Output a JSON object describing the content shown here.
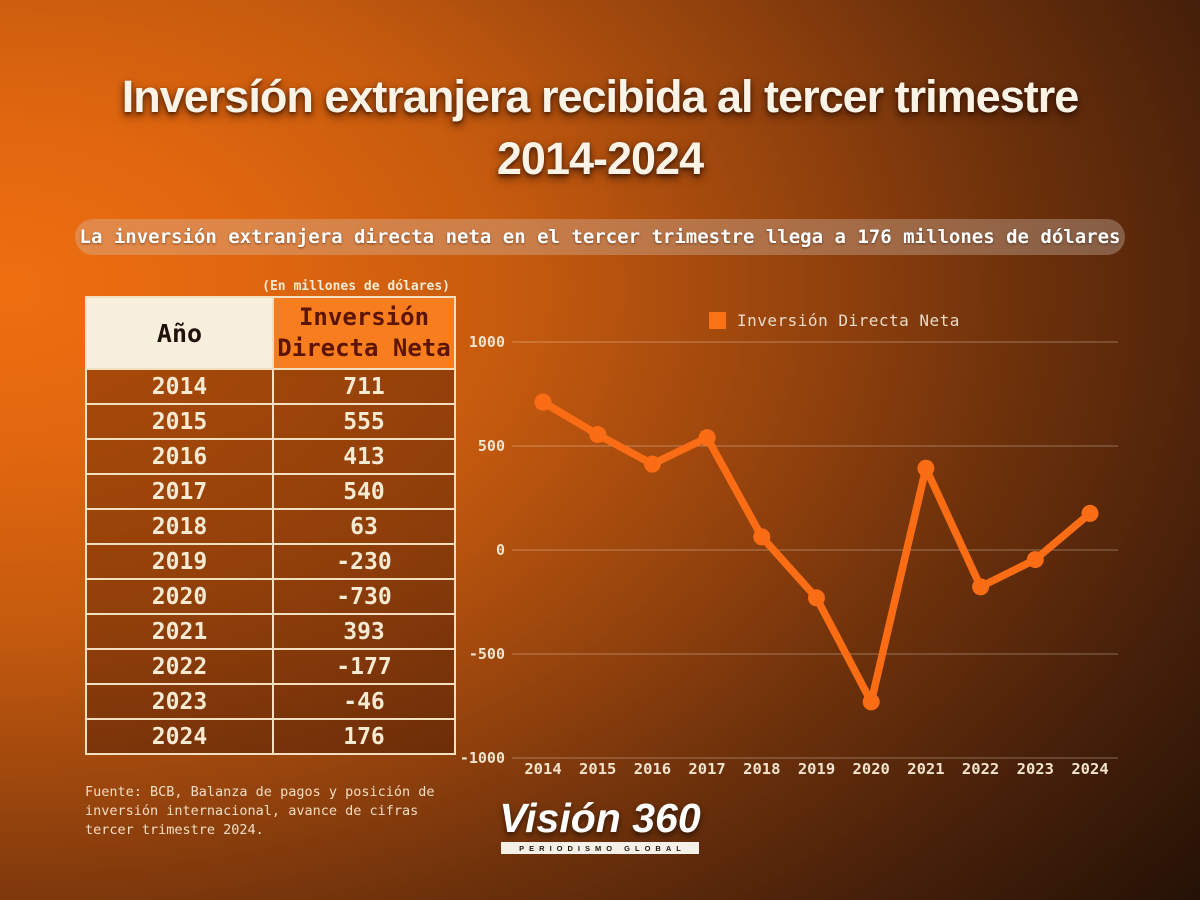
{
  "title": {
    "line1": "Inversíón extranjera recibida al tercer trimestre",
    "line2": "2014-2024"
  },
  "subtitle": "La inversión extranjera directa neta en el tercer trimestre llega a 176 millones de dólares",
  "table": {
    "units_note": "(En millones de dólares)",
    "col_year": "Año",
    "col_value_line1": "Inversión",
    "col_value_line2": "Directa Neta",
    "rows": [
      {
        "year": "2014",
        "value": "711"
      },
      {
        "year": "2015",
        "value": "555"
      },
      {
        "year": "2016",
        "value": "413"
      },
      {
        "year": "2017",
        "value": "540"
      },
      {
        "year": "2018",
        "value": "63"
      },
      {
        "year": "2019",
        "value": "-230"
      },
      {
        "year": "2020",
        "value": "-730"
      },
      {
        "year": "2021",
        "value": "393"
      },
      {
        "year": "2022",
        "value": "-177"
      },
      {
        "year": "2023",
        "value": "-46"
      },
      {
        "year": "2024",
        "value": "176"
      }
    ]
  },
  "source": {
    "line1": "Fuente: BCB, Balanza de pagos y posición de",
    "line2": "inversión internacional, avance de cifras",
    "line3": "tercer trimestre 2024."
  },
  "logo": {
    "name": "Visión 360",
    "tagline": "PERIODISMO GLOBAL"
  },
  "chart_data": {
    "type": "line",
    "title": "",
    "legend": "Inversión Directa Neta",
    "legend_position": "top",
    "categories": [
      "2014",
      "2015",
      "2016",
      "2017",
      "2018",
      "2019",
      "2020",
      "2021",
      "2022",
      "2023",
      "2024"
    ],
    "values": [
      711,
      555,
      413,
      540,
      63,
      -230,
      -730,
      393,
      -177,
      -46,
      176
    ],
    "xlabel": "",
    "ylabel": "",
    "ylim": [
      -1000,
      1000
    ],
    "yticks": [
      1000,
      500,
      0,
      -500,
      -1000
    ],
    "grid": true,
    "line_color": "#fb6d14",
    "marker_color": "#fb6d14",
    "grid_color": "rgba(243,230,215,0.38)",
    "tick_color": "#f2e3cd"
  },
  "colors": {
    "accent_orange": "#f97316",
    "header_orange": "#f87d1e",
    "cream": "#f8efdc",
    "background_top_left": "#ef6f10",
    "background_dark": "#170b04"
  }
}
